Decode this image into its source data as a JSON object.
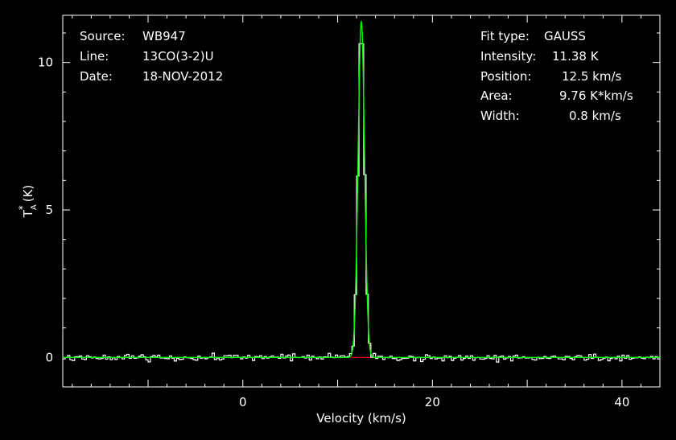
{
  "chart_data": {
    "type": "line",
    "xlabel": "Velocity (km/s)",
    "ylabel": "T",
    "ylabel_sub": "A",
    "ylabel_sup": "*",
    "ylabel_unit": "(K)",
    "xlim": [
      -19,
      44
    ],
    "ylim": [
      -1,
      11.6
    ],
    "x_ticks_major": [
      0,
      20,
      40
    ],
    "x_tick_labels": [
      "0",
      "20",
      "40"
    ],
    "y_ticks_major": [
      0,
      5,
      10
    ],
    "y_tick_labels": [
      "0",
      "5",
      "10"
    ],
    "grid": false,
    "channel_width_kms": 0.25,
    "noise_rms_K": 0.08,
    "series": [
      {
        "name": "spectrum",
        "color": "#ffffff",
        "style": "histogram"
      },
      {
        "name": "gaussian fit",
        "color": "#00ff00",
        "amplitude": 11.38,
        "center": 12.5,
        "fwhm": 0.8
      },
      {
        "name": "fit baseline window",
        "color": "#ff0000",
        "x_range": [
          11.4,
          13.7
        ],
        "y": 0
      }
    ]
  },
  "info_left": [
    {
      "key": "Source:",
      "value": "WB947"
    },
    {
      "key": "Line:",
      "value": "13CO(3-2)U"
    },
    {
      "key": "Date:",
      "value": "18-NOV-2012"
    }
  ],
  "info_right": [
    {
      "key": "Fit type:",
      "value": "GAUSS"
    },
    {
      "key": "Intensity:",
      "value": "11.38 K"
    },
    {
      "key": "Position:",
      "value": "12.5 km/s"
    },
    {
      "key": "Area:",
      "value": "9.76 K*km/s"
    },
    {
      "key": "Width:",
      "value": "0.8 km/s"
    }
  ]
}
